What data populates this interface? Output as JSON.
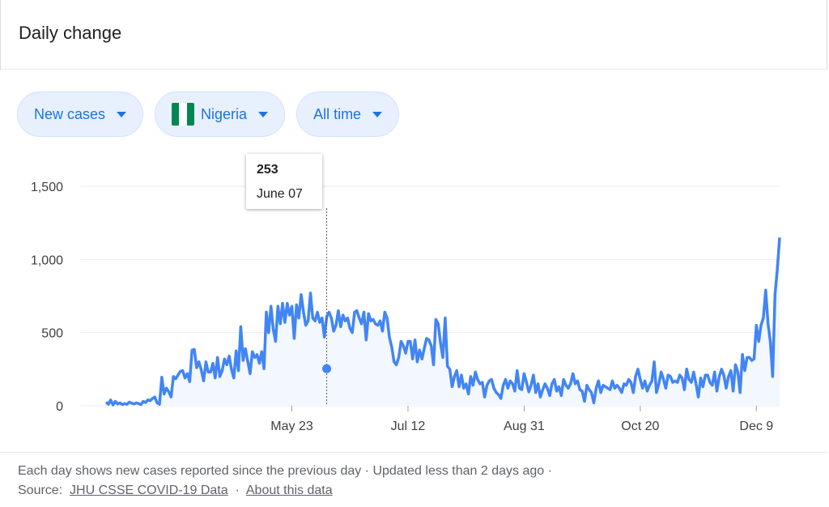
{
  "header": {
    "title": "Daily change"
  },
  "filters": {
    "metric": "New cases",
    "country": "Nigeria",
    "range": "All time",
    "flag_colors": [
      "#008751",
      "#ffffff",
      "#008751"
    ]
  },
  "tooltip": {
    "value": "253",
    "date": "June 07"
  },
  "footer": {
    "line1": "Each day shows new cases reported since the previous day · Updated less than 2 days ago ·",
    "source_label": "Source:",
    "source_link": "JHU CSSE COVID-19 Data",
    "separator": "·",
    "about_link": "About this data"
  },
  "colors": {
    "line": "#4285f4",
    "area": "#f3f7fe",
    "grid": "#ebebeb"
  },
  "chart_data": {
    "type": "line",
    "title": "",
    "xlabel": "",
    "ylabel": "",
    "ylim": [
      0,
      1500
    ],
    "yticks": [
      0,
      500,
      1000,
      1500
    ],
    "ytick_labels": [
      "0",
      "500",
      "1,000",
      "1,500"
    ],
    "xticks": [
      {
        "day": 80,
        "label": "May 23"
      },
      {
        "day": 130,
        "label": "Jul 12"
      },
      {
        "day": 180,
        "label": "Aug 31"
      },
      {
        "day": 230,
        "label": "Oct 20"
      },
      {
        "day": 280,
        "label": "Dec 9"
      }
    ],
    "highlight": {
      "day": 95,
      "value": 253
    },
    "series": [
      {
        "values": [
          25,
          10,
          40,
          5,
          30,
          12,
          20,
          8,
          15,
          10,
          25,
          18,
          12,
          20,
          15,
          8,
          30,
          22,
          40,
          35,
          50,
          60,
          20,
          10,
          195,
          80,
          120,
          95,
          60,
          200,
          185,
          210,
          235,
          240,
          190,
          220,
          165,
          380,
          385,
          260,
          300,
          245,
          170,
          300,
          230,
          230,
          290,
          190,
          330,
          200,
          240,
          320,
          280,
          340,
          250,
          190,
          375,
          240,
          540,
          310,
          390,
          305,
          220,
          370,
          330,
          350,
          290,
          370,
          253,
          640,
          500,
          680,
          520,
          440,
          680,
          560,
          700,
          570,
          700,
          620,
          680,
          460,
          690,
          600,
          760,
          640,
          550,
          580,
          770,
          600,
          580,
          640,
          570,
          600,
          470,
          610,
          640,
          600,
          510,
          550,
          650,
          540,
          620,
          580,
          600,
          530,
          500,
          640,
          650,
          600,
          560,
          640,
          450,
          630,
          580,
          590,
          560,
          550,
          580,
          510,
          640,
          600,
          470,
          400,
          300,
          280,
          330,
          440,
          410,
          360,
          440,
          440,
          320,
          450,
          300,
          380,
          320,
          390,
          460,
          450,
          410,
          280,
          590,
          560,
          430,
          330,
          600,
          270,
          250,
          130,
          200,
          240,
          130,
          210,
          120,
          150,
          80,
          200,
          140,
          230,
          180,
          150,
          160,
          60,
          140,
          170,
          180,
          120,
          90,
          75,
          50,
          140,
          180,
          120,
          170,
          150,
          100,
          240,
          120,
          110,
          220,
          160,
          95,
          140,
          210,
          90,
          150,
          60,
          110,
          150,
          120,
          70,
          150,
          180,
          100,
          130,
          70,
          180,
          140,
          120,
          150,
          220,
          150,
          170,
          110,
          100,
          30,
          140,
          110,
          90,
          20,
          120,
          170,
          90,
          140,
          130,
          120,
          110,
          170,
          120,
          140,
          120,
          90,
          150,
          140,
          180,
          160,
          90,
          200,
          250,
          180,
          120,
          170,
          100,
          140,
          170,
          300,
          90,
          150,
          230,
          180,
          120,
          210,
          200,
          160,
          170,
          160,
          210,
          190,
          110,
          250,
          180,
          160,
          230,
          150,
          60,
          190,
          130,
          210,
          210,
          160,
          140,
          230,
          100,
          200,
          250,
          210,
          120,
          200,
          240,
          100,
          280,
          230,
          90,
          350,
          240,
          330,
          330,
          310,
          320,
          550,
          440,
          550,
          600,
          790,
          560,
          440,
          200,
          760,
          930,
          1150
        ]
      }
    ]
  }
}
